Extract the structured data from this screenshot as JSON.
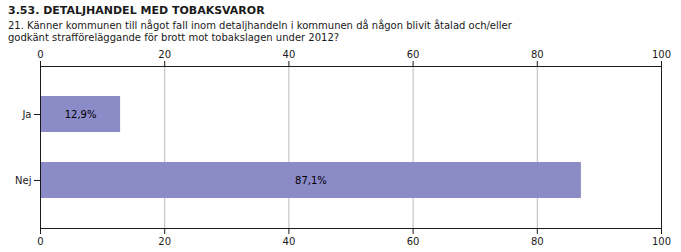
{
  "chart_data": {
    "type": "bar",
    "title": "3.53. DETALJHANDEL MED TOBAKSVAROR",
    "subtitle": "21. Känner kommunen till något fall inom detaljhandeln i kommunen då någon blivit åtalad och/eller\ngodkänt strafföreläggande för brott mot tobakslagen under 2012?",
    "orientation": "horizontal",
    "categories": [
      "Ja",
      "Nej"
    ],
    "values": [
      12.9,
      87.1
    ],
    "value_labels": [
      "12,9%",
      "87,1%"
    ],
    "data_labels": true,
    "color": "#8b8bc8",
    "xlim": [
      0,
      100
    ],
    "xticks": [
      0,
      20,
      40,
      60,
      80,
      100
    ],
    "grid": true
  }
}
